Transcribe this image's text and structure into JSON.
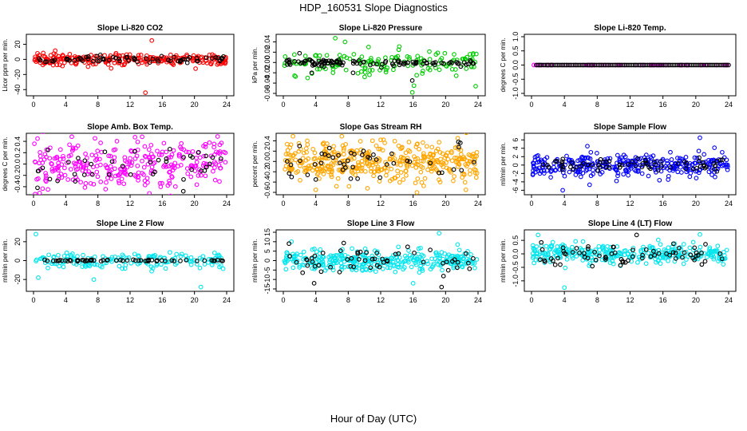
{
  "page": {
    "title": "HDP_160531  Slope Diagnostics",
    "xlabel": "Hour of Day (UTC)"
  },
  "chart_data": [
    {
      "id": "co2",
      "type": "scatter",
      "title": "Slope Li-820 CO2",
      "ylabel": "Licor ppm per min.",
      "color": "#ff0000",
      "xlim": [
        0,
        24
      ],
      "ylim": [
        -45,
        30
      ],
      "xticks": [
        0,
        4,
        8,
        12,
        16,
        20,
        24
      ],
      "yticks": [
        -40,
        -20,
        0,
        20
      ],
      "yticklabels": [
        "-40",
        "-20",
        "0",
        "20"
      ],
      "spread": 3.5,
      "black_spread": 2,
      "n": 260,
      "nblack": 70,
      "outliers": [
        [
          14.7,
          25
        ],
        [
          13.9,
          -44
        ],
        [
          0.5,
          8
        ],
        [
          10.2,
          6
        ]
      ],
      "black_outliers": []
    },
    {
      "id": "pressure",
      "type": "scatter",
      "title": "Slope Li-820 Pressure",
      "ylabel": "kPa per min.",
      "color": "#00cc00",
      "xlim": [
        0,
        24
      ],
      "ylim": [
        -0.06,
        0.05
      ],
      "xticks": [
        0,
        4,
        8,
        12,
        16,
        20,
        24
      ],
      "yticks": [
        -0.06,
        -0.04,
        -0.02,
        0.0,
        0.02,
        0.04
      ],
      "yticklabels": [
        "-0.06",
        "-0.04",
        "-0.02",
        "0.00",
        "0.02",
        "0.04"
      ],
      "spread": 0.013,
      "black_spread": 0.003,
      "n": 150,
      "nblack": 110,
      "outliers": [
        [
          6.4,
          0.047
        ],
        [
          7.6,
          0.04
        ],
        [
          15.9,
          -0.058
        ],
        [
          16.1,
          -0.045
        ],
        [
          3.0,
          -0.03
        ],
        [
          10.5,
          0.03
        ]
      ],
      "black_outliers": [
        [
          15.9,
          -0.035
        ],
        [
          3.5,
          -0.02
        ],
        [
          2.0,
          0.018
        ],
        [
          8.6,
          -0.02
        ]
      ]
    },
    {
      "id": "temp",
      "type": "scatter",
      "title": "Slope Li-820 Temp.",
      "ylabel": "degrees C per min.",
      "color": "#ff00ff",
      "xlim": [
        0,
        24
      ],
      "ylim": [
        -1.0,
        1.0
      ],
      "xticks": [
        0,
        4,
        8,
        12,
        16,
        20,
        24
      ],
      "yticks": [
        -1.0,
        -0.5,
        0.0,
        0.5,
        1.0
      ],
      "yticklabels": [
        "-1.0",
        "-0.5",
        "0.0",
        "0.5",
        "1.0"
      ],
      "spread": 0,
      "black_spread": 0,
      "n": 60,
      "nblack": 110,
      "outliers": [],
      "black_outliers": []
    },
    {
      "id": "boxtemp",
      "type": "scatter",
      "title": "Slope Amb. Box Temp.",
      "ylabel": "degrees C per min.",
      "color": "#ff00ff",
      "xlim": [
        0,
        24
      ],
      "ylim": [
        -0.5,
        0.5
      ],
      "xticks": [
        0,
        4,
        8,
        12,
        16,
        20,
        24
      ],
      "yticks": [
        -0.4,
        -0.2,
        0.0,
        0.2,
        0.4
      ],
      "yticklabels": [
        "-0.4",
        "-0.2",
        "0.0",
        "0.2",
        "0.4"
      ],
      "spread": 0.22,
      "black_spread": 0.2,
      "n": 300,
      "nblack": 40,
      "outliers": [
        [
          0.5,
          0.45
        ],
        [
          13.5,
          0.48
        ],
        [
          1.8,
          -0.45
        ]
      ],
      "black_outliers": [
        [
          0.5,
          -0.42
        ],
        [
          1.8,
          0.25
        ]
      ]
    },
    {
      "id": "rh",
      "type": "scatter",
      "title": "Slope Gas Stream RH",
      "ylabel": "percent per min.",
      "color": "#ffa500",
      "xlim": [
        0,
        24
      ],
      "ylim": [
        -0.6,
        0.5
      ],
      "xticks": [
        0,
        4,
        8,
        12,
        16,
        20,
        24
      ],
      "yticks": [
        -0.6,
        -0.4,
        -0.2,
        0.0,
        0.2,
        0.4
      ],
      "yticklabels": [
        "-0.6",
        "-0.4",
        "-0.2",
        "0.0",
        "0.2",
        "0.4"
      ],
      "spread": 0.18,
      "black_spread": 0.18,
      "n": 420,
      "nblack": 45,
      "outliers": [
        [
          4.0,
          -0.55
        ],
        [
          12.0,
          0.42
        ],
        [
          21.5,
          0.45
        ],
        [
          22.5,
          -0.55
        ]
      ],
      "black_outliers": [
        [
          4.0,
          -0.35
        ],
        [
          2.0,
          0.3
        ]
      ]
    },
    {
      "id": "sample",
      "type": "scatter",
      "title": "Slope Sample Flow",
      "ylabel": "ml/min per min.",
      "color": "#0000ff",
      "xlim": [
        0,
        24
      ],
      "ylim": [
        -6.5,
        7
      ],
      "xticks": [
        0,
        4,
        8,
        12,
        16,
        20,
        24
      ],
      "yticks": [
        -6,
        -4,
        -2,
        0,
        2,
        4,
        6
      ],
      "yticklabels": [
        "-6",
        "-4",
        "-2",
        "0",
        "2",
        "4",
        "6"
      ],
      "spread": 1.3,
      "black_spread": 0.8,
      "n": 330,
      "nblack": 70,
      "outliers": [
        [
          20.5,
          6.5
        ],
        [
          3.8,
          -6
        ],
        [
          6.8,
          4.5
        ]
      ],
      "black_outliers": []
    },
    {
      "id": "line2",
      "type": "scatter",
      "title": "Slope Line 2 Flow",
      "ylabel": "ml/min per min.",
      "color": "#00e5ee",
      "xlim": [
        0,
        24
      ],
      "ylim": [
        -30,
        30
      ],
      "xticks": [
        0,
        4,
        8,
        12,
        16,
        20,
        24
      ],
      "yticks": [
        -20,
        0,
        20
      ],
      "yticklabels": [
        "-20",
        "0",
        "20"
      ],
      "spread": 4.5,
      "black_spread": 0.4,
      "n": 160,
      "nblack": 60,
      "outliers": [
        [
          0.3,
          28
        ],
        [
          20.8,
          -28
        ],
        [
          7.5,
          -20
        ],
        [
          0.6,
          -18
        ]
      ],
      "black_outliers": []
    },
    {
      "id": "line3",
      "type": "scatter",
      "title": "Slope Line 3 Flow",
      "ylabel": "ml/min per min.",
      "color": "#00e5ee",
      "xlim": [
        0,
        24
      ],
      "ylim": [
        -15,
        15
      ],
      "xticks": [
        0,
        4,
        8,
        12,
        16,
        20,
        24
      ],
      "yticks": [
        -15,
        -10,
        -5,
        0,
        5,
        10,
        15
      ],
      "yticklabels": [
        "-15",
        "-10",
        "-5",
        "0",
        "5",
        "10",
        "15"
      ],
      "spread": 2.8,
      "black_spread": 4,
      "n": 330,
      "nblack": 55,
      "outliers": [
        [
          19.2,
          14.5
        ],
        [
          1.0,
          10
        ],
        [
          16.0,
          -12
        ]
      ],
      "black_outliers": [
        [
          19.5,
          -14
        ],
        [
          3.8,
          -12
        ],
        [
          0.7,
          9
        ]
      ]
    },
    {
      "id": "line4",
      "type": "scatter",
      "title": "Slope Line 4 (LT) Flow",
      "ylabel": "ml/min per min.",
      "color": "#00e5ee",
      "xlim": [
        0,
        24
      ],
      "ylim": [
        -1.3,
        0.8
      ],
      "xticks": [
        0,
        4,
        8,
        12,
        16,
        20,
        24
      ],
      "yticks": [
        -1.0,
        -0.5,
        0.0,
        0.5
      ],
      "yticklabels": [
        "-1.0",
        "-0.5",
        "0.0",
        "0.5"
      ],
      "spread": 0.18,
      "black_spread": 0.2,
      "n": 300,
      "nblack": 70,
      "outliers": [
        [
          4.0,
          -1.25
        ],
        [
          20.5,
          0.72
        ],
        [
          0.8,
          0.7
        ]
      ],
      "black_outliers": [
        [
          12.8,
          0.7
        ]
      ]
    }
  ]
}
